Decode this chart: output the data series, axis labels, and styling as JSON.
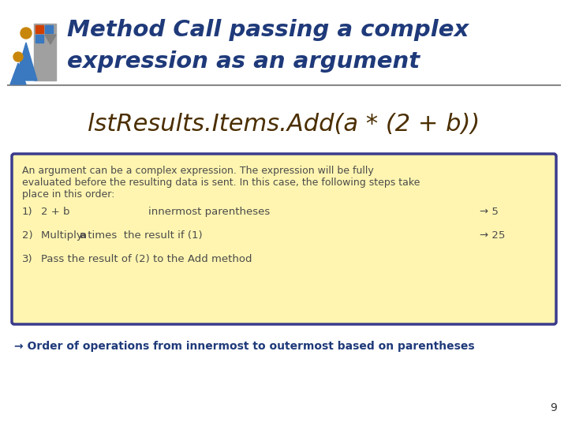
{
  "title_line1": "Method Call passing a complex",
  "title_line2": "expression as an argument",
  "title_color": "#1F3A7A",
  "bg_color": "#FFFFFF",
  "code_line": "lstResults.Items.Add(a * (2 + b))",
  "code_color": "#4B2E00",
  "box_bg": "#FFF5B0",
  "box_border": "#3A3A8C",
  "box_text_color": "#4B4B4B",
  "box_intro_l1": "An argument can be a complex expression. The expression will be fully",
  "box_intro_l2": "evaluated before the resulting data is sent. In this case, the following steps take",
  "box_intro_l3": "place in this order:",
  "step1_num": "1)",
  "step1_left": "2 + b",
  "step1_mid": "innermost parentheses",
  "step1_right": "→ 5",
  "step2_num": "2)",
  "step2_left": "Multiply ",
  "step2_bold": "a",
  "step2_mid": " times  the result if (1)",
  "step2_right": "→ 25",
  "step3_num": "3)",
  "step3_text": "Pass the result of (2) to the Add method",
  "arrow_text": "→ Order of operations from innermost to outermost based on parentheses",
  "arrow_text_color": "#1F3A7A",
  "page_num": "9",
  "separator_color": "#888888",
  "icon_person1_head": "#C8860A",
  "icon_person1_body": "#3A78C0",
  "icon_person2_head": "#C8860A",
  "icon_person2_body": "#3A78C0",
  "icon_rect_color": "#808080",
  "icon_sq1_color": "#D04000",
  "icon_sq2_color": "#3A78C0",
  "icon_tri_color": "#808080"
}
